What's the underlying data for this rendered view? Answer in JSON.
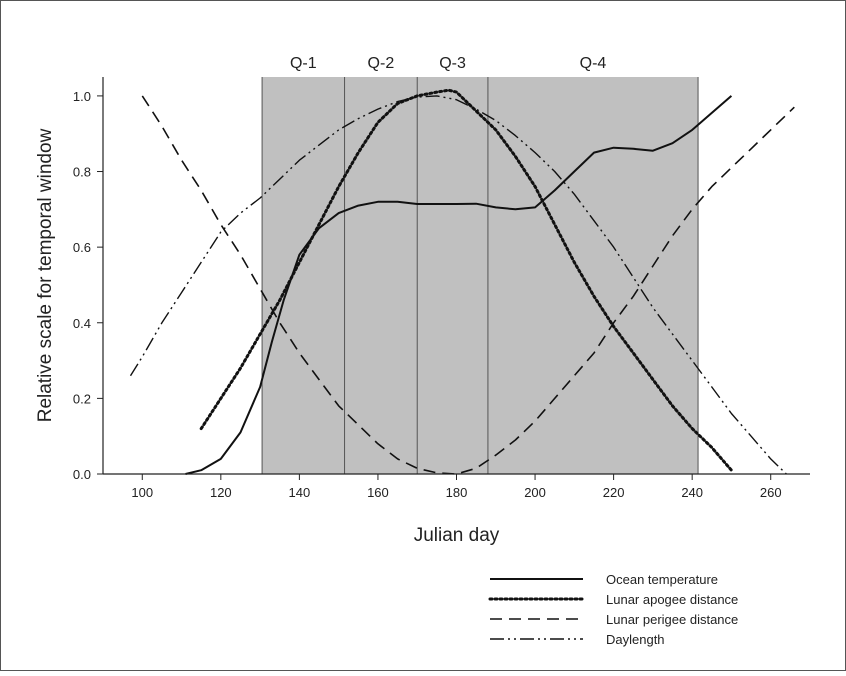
{
  "chart_data": {
    "type": "line",
    "xlabel": "Julian day",
    "ylabel": "Relative scale for temporal window",
    "xlim": [
      90,
      270
    ],
    "ylim": [
      0,
      1.05
    ],
    "x_ticks": [
      "100",
      "120",
      "140",
      "160",
      "180",
      "200",
      "220",
      "240",
      "260"
    ],
    "y_ticks": [
      "0.0",
      "0.2",
      "0.4",
      "0.6",
      "0.8",
      "1.0"
    ],
    "grid": false,
    "legend_position": "bottom-right",
    "quarters": [
      {
        "label": "Q-1",
        "start": 130.5,
        "end": 151.5
      },
      {
        "label": "Q-2",
        "start": 151.5,
        "end": 170
      },
      {
        "label": "Q-3",
        "start": 170,
        "end": 188
      },
      {
        "label": "Q-4",
        "start": 188,
        "end": 241.5
      }
    ],
    "shade_color": "#c0c0c0",
    "series": [
      {
        "name": "Ocean temperature",
        "style": "solid",
        "x": [
          111,
          115,
          120,
          125,
          130,
          133,
          136,
          140,
          145,
          150,
          155,
          160,
          165,
          170,
          175,
          180,
          185,
          190,
          195,
          200,
          205,
          210,
          215,
          220,
          225,
          230,
          235,
          240,
          245,
          250
        ],
        "y": [
          0,
          0.01,
          0.04,
          0.11,
          0.23,
          0.35,
          0.46,
          0.58,
          0.65,
          0.69,
          0.71,
          0.72,
          0.72,
          0.714,
          0.714,
          0.714,
          0.715,
          0.705,
          0.7,
          0.705,
          0.75,
          0.8,
          0.85,
          0.863,
          0.86,
          0.855,
          0.875,
          0.91,
          0.955,
          1.0
        ]
      },
      {
        "name": "Lunar apogee distance",
        "style": "dotted",
        "x": [
          115,
          120,
          125,
          130,
          135,
          140,
          145,
          150,
          155,
          160,
          165,
          170,
          175,
          178,
          180,
          185,
          190,
          195,
          200,
          205,
          210,
          215,
          220,
          225,
          230,
          235,
          240,
          245,
          250
        ],
        "y": [
          0.12,
          0.2,
          0.28,
          0.37,
          0.46,
          0.56,
          0.66,
          0.76,
          0.85,
          0.93,
          0.98,
          1.0,
          1.01,
          1.015,
          1.01,
          0.96,
          0.91,
          0.84,
          0.76,
          0.66,
          0.56,
          0.47,
          0.39,
          0.32,
          0.25,
          0.18,
          0.12,
          0.07,
          0.01
        ]
      },
      {
        "name": "Lunar perigee distance",
        "style": "dashed",
        "x": [
          100,
          105,
          110,
          115,
          120,
          125,
          130,
          135,
          140,
          145,
          150,
          155,
          160,
          165,
          170,
          175,
          180,
          185,
          190,
          195,
          200,
          205,
          210,
          215,
          220,
          225,
          230,
          235,
          240,
          245,
          250,
          255,
          260,
          266
        ],
        "y": [
          1.0,
          0.92,
          0.83,
          0.75,
          0.66,
          0.58,
          0.49,
          0.4,
          0.32,
          0.25,
          0.18,
          0.13,
          0.08,
          0.04,
          0.015,
          0.003,
          0,
          0.015,
          0.05,
          0.09,
          0.14,
          0.2,
          0.26,
          0.32,
          0.4,
          0.47,
          0.55,
          0.63,
          0.7,
          0.76,
          0.81,
          0.86,
          0.91,
          0.97
        ]
      },
      {
        "name": "Daylength",
        "style": "dashdotdot",
        "x": [
          97,
          100,
          105,
          110,
          115,
          120,
          125,
          130,
          135,
          140,
          145,
          150,
          155,
          160,
          165,
          170,
          175,
          180,
          185,
          190,
          195,
          200,
          205,
          210,
          215,
          220,
          225,
          230,
          235,
          240,
          245,
          250,
          255,
          260,
          264
        ],
        "y": [
          0.26,
          0.31,
          0.4,
          0.48,
          0.56,
          0.64,
          0.69,
          0.73,
          0.78,
          0.83,
          0.87,
          0.91,
          0.94,
          0.965,
          0.985,
          0.997,
          1.0,
          0.99,
          0.965,
          0.935,
          0.895,
          0.85,
          0.8,
          0.74,
          0.67,
          0.6,
          0.52,
          0.44,
          0.37,
          0.3,
          0.23,
          0.16,
          0.1,
          0.04,
          0.0
        ]
      }
    ]
  }
}
